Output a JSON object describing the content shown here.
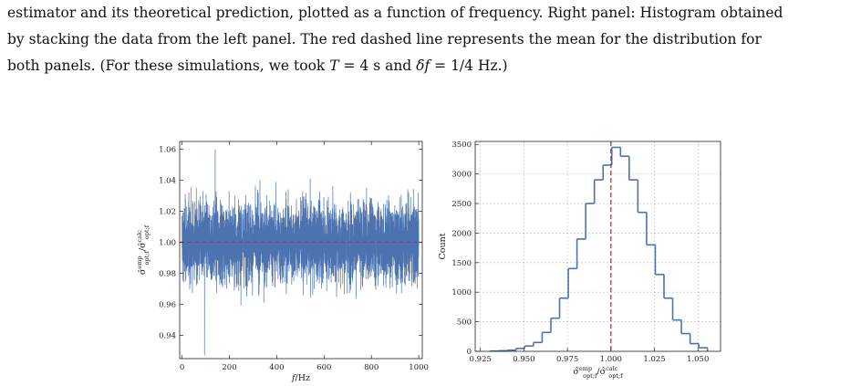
{
  "caption": {
    "line1": "estimator and its theoretical prediction, plotted as a function of frequency. Right panel: Histogram obtained",
    "line2": "by stacking the data from the left panel. The red dashed line represents the mean for the distribution for",
    "line3": "both panels. (For these simulations, we took T = 4 s and δf = 1/4 Hz.)"
  },
  "chart_data": [
    {
      "type": "line",
      "xlabel": "f/Hz",
      "ylabel": "σ̂ emp opt;f / σ̂ calc opt;f",
      "xlim": [
        -10,
        1015
      ],
      "ylim": [
        0.925,
        1.065
      ],
      "xticks": [
        0,
        200,
        400,
        600,
        800,
        1000
      ],
      "yticks": [
        0.94,
        0.96,
        0.98,
        1.0,
        1.02,
        1.04,
        1.06
      ],
      "ytick_labels": [
        "0.94",
        "0.96",
        "0.98",
        "1.00",
        "1.02",
        "1.04",
        "1.06"
      ],
      "series": [
        {
          "band_center": 1.0,
          "band_upper_typical": 1.04,
          "band_lower_typical": 0.96,
          "max": 1.06,
          "min": 0.927
        }
      ],
      "mean_line": 1.0,
      "colors": {
        "series": "#4c72b0",
        "mean": "#d62728"
      }
    },
    {
      "type": "bar",
      "xlabel": "σ̂ emp opt;f / σ̂ calc opt;f",
      "ylabel": "Count",
      "xlim": [
        0.922,
        1.063
      ],
      "ylim": [
        0,
        3550
      ],
      "xticks": [
        0.925,
        0.95,
        0.975,
        1.0,
        1.025,
        1.05
      ],
      "xtick_labels": [
        "0.925",
        "0.950",
        "0.975",
        "1.000",
        "1.025",
        "1.050"
      ],
      "yticks": [
        0,
        500,
        1000,
        1500,
        2000,
        2500,
        3000,
        3500
      ],
      "bin_edges": [
        0.9305,
        0.9355,
        0.9405,
        0.9455,
        0.9505,
        0.9555,
        0.9605,
        0.9655,
        0.9705,
        0.9755,
        0.9805,
        0.9855,
        0.9905,
        0.9955,
        1.0005,
        1.0055,
        1.0105,
        1.0155,
        1.0205,
        1.0255,
        1.0305,
        1.0355,
        1.0405,
        1.0455,
        1.0505,
        1.0555
      ],
      "values": [
        5,
        10,
        20,
        50,
        90,
        150,
        320,
        560,
        900,
        1400,
        1900,
        2500,
        2900,
        3150,
        3450,
        3300,
        2900,
        2350,
        1800,
        1300,
        900,
        530,
        300,
        130,
        60
      ],
      "mean_line": 1.0,
      "grid": true,
      "colors": {
        "step": "#4c72b0",
        "mean": "#d62728"
      }
    }
  ]
}
